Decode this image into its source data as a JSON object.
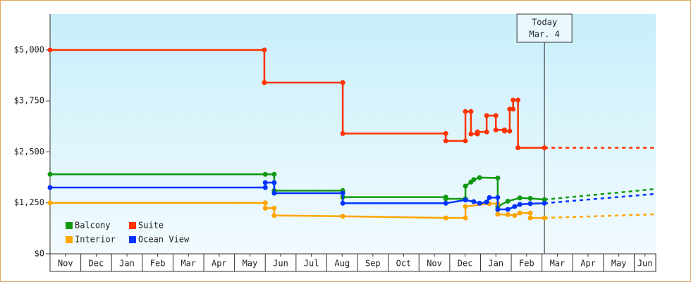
{
  "chart_data": {
    "type": "line",
    "xlim": [
      0,
      19.7
    ],
    "xticks": [
      {
        "value": 0.5,
        "label": "Nov"
      },
      {
        "value": 1.5,
        "label": "Dec"
      },
      {
        "value": 2.5,
        "label": "Jan"
      },
      {
        "value": 3.5,
        "label": "Feb"
      },
      {
        "value": 4.5,
        "label": "Mar"
      },
      {
        "value": 5.5,
        "label": "Apr"
      },
      {
        "value": 6.5,
        "label": "May"
      },
      {
        "value": 7.5,
        "label": "Jun"
      },
      {
        "value": 8.5,
        "label": "Jul"
      },
      {
        "value": 9.5,
        "label": "Aug"
      },
      {
        "value": 10.5,
        "label": "Sep"
      },
      {
        "value": 11.5,
        "label": "Oct"
      },
      {
        "value": 12.5,
        "label": "Nov"
      },
      {
        "value": 13.5,
        "label": "Dec"
      },
      {
        "value": 14.5,
        "label": "Jan"
      },
      {
        "value": 15.5,
        "label": "Feb"
      },
      {
        "value": 16.5,
        "label": "Mar"
      },
      {
        "value": 17.5,
        "label": "Apr"
      },
      {
        "value": 18.5,
        "label": "May"
      },
      {
        "value": 19.35,
        "label": "Jun"
      }
    ],
    "ylim": [
      0,
      5880
    ],
    "yticks": [
      {
        "value": 0,
        "label": "$0"
      },
      {
        "value": 1250,
        "label": "$1,250"
      },
      {
        "value": 2500,
        "label": "$2,500"
      },
      {
        "value": 3750,
        "label": "$3,750"
      },
      {
        "value": 5000,
        "label": "$5,000"
      }
    ],
    "legend": "lower left",
    "annotation": {
      "x": 16.08,
      "lines": [
        "Today",
        "Mar. 4"
      ]
    },
    "series": [
      {
        "name": "Balcony",
        "color": "#119911",
        "x": [
          0,
          7.0,
          7.29,
          7.29,
          9.52,
          9.52,
          12.87,
          12.87,
          13.51,
          13.51,
          13.69,
          13.78,
          13.97,
          14.56,
          14.56,
          14.89,
          15.28,
          15.62,
          16.08
        ],
        "values": [
          1950,
          1950,
          1950,
          1550,
          1550,
          1390,
          1390,
          1350,
          1350,
          1660,
          1760,
          1820,
          1870,
          1860,
          1160,
          1290,
          1370,
          1360,
          1330
        ],
        "forecast": {
          "x": [
            16.08,
            19.7
          ],
          "values": [
            1330,
            1590
          ]
        }
      },
      {
        "name": "Suite",
        "color": "#ff3300",
        "x": [
          0,
          6.97,
          6.97,
          9.52,
          9.52,
          12.87,
          12.87,
          13.51,
          13.51,
          13.69,
          13.69,
          13.9,
          13.9,
          14.2,
          14.2,
          14.5,
          14.5,
          14.78,
          14.78,
          14.95,
          14.95,
          15.06,
          15.06,
          15.22,
          15.22,
          16.08
        ],
        "values": [
          5000,
          5000,
          4200,
          4200,
          2950,
          2950,
          2770,
          2770,
          3490,
          3490,
          2940,
          2940,
          2990,
          2990,
          3390,
          3390,
          3040,
          3040,
          3010,
          3010,
          3550,
          3550,
          3770,
          3770,
          2600,
          2600
        ],
        "forecast": {
          "x": [
            16.08,
            19.7
          ],
          "values": [
            2600,
            2600
          ]
        }
      },
      {
        "name": "Interior",
        "color": "#ffa500",
        "x": [
          0,
          7.0,
          7.0,
          7.29,
          7.29,
          9.52,
          12.87,
          13.51,
          13.51,
          14.29,
          14.56,
          14.56,
          14.89,
          15.11,
          15.28,
          15.62,
          15.62,
          16.08
        ],
        "values": [
          1250,
          1250,
          1120,
          1120,
          940,
          920,
          880,
          880,
          1160,
          1230,
          1230,
          970,
          960,
          940,
          1000,
          1000,
          880,
          880
        ],
        "forecast": {
          "x": [
            16.08,
            19.7
          ],
          "values": [
            880,
            970
          ]
        }
      },
      {
        "name": "Ocean View",
        "color": "#0033ff",
        "x": [
          0,
          7.0,
          7.0,
          7.29,
          7.29,
          9.52,
          9.52,
          12.87,
          13.51,
          13.78,
          13.97,
          14.2,
          14.29,
          14.56,
          14.56,
          14.89,
          15.11,
          15.28,
          15.62,
          16.08
        ],
        "values": [
          1625,
          1625,
          1746,
          1746,
          1487,
          1487,
          1240,
          1240,
          1320,
          1280,
          1240,
          1270,
          1380,
          1380,
          1090,
          1090,
          1160,
          1210,
          1230,
          1240
        ],
        "forecast": {
          "x": [
            16.08,
            19.7
          ],
          "values": [
            1240,
            1470
          ]
        }
      }
    ]
  }
}
